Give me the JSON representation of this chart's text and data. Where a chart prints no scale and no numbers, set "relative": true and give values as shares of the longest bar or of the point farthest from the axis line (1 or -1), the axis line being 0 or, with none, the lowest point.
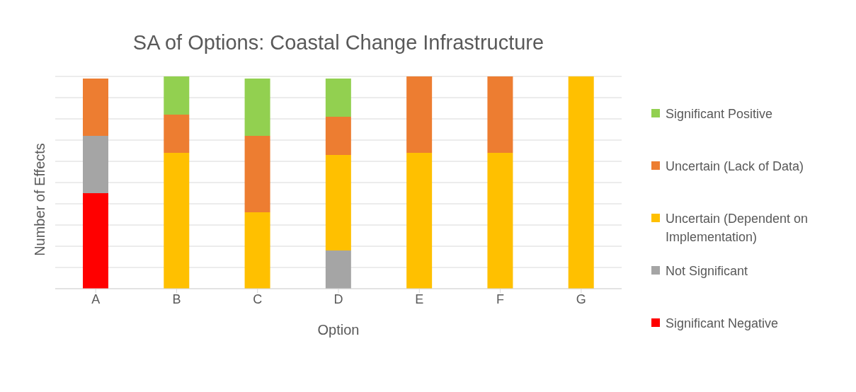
{
  "chart_data": {
    "type": "bar",
    "title": "SA of Options: Coastal Change Infrastructure",
    "xlabel": "Option",
    "ylabel": "Number of Effects",
    "categories": [
      "A",
      "B",
      "C",
      "D",
      "E",
      "F",
      "G"
    ],
    "stacked": true,
    "relative": true,
    "grid": "y",
    "legend": "right",
    "series": [
      {
        "name": "Significant Negative",
        "color": "#ff0000",
        "values": [
          0.45,
          0,
          0,
          0,
          0,
          0,
          0
        ]
      },
      {
        "name": "Not Significant",
        "color": "#a5a5a5",
        "values": [
          0.27,
          0,
          0,
          0.18,
          0,
          0,
          0
        ]
      },
      {
        "name": "Uncertain (Dependent on Implementation)",
        "color": "#ffc000",
        "values": [
          0,
          0.64,
          0.36,
          0.45,
          0.64,
          0.64,
          1
        ]
      },
      {
        "name": "Uncertain (Lack of Data)",
        "color": "#ed7d31",
        "values": [
          0.27,
          0.18,
          0.36,
          0.18,
          0.36,
          0.36,
          0
        ]
      },
      {
        "name": "Significant Positive",
        "color": "#92d050",
        "values": [
          0,
          0.18,
          0.27,
          0.18,
          0,
          0,
          0
        ]
      }
    ]
  }
}
